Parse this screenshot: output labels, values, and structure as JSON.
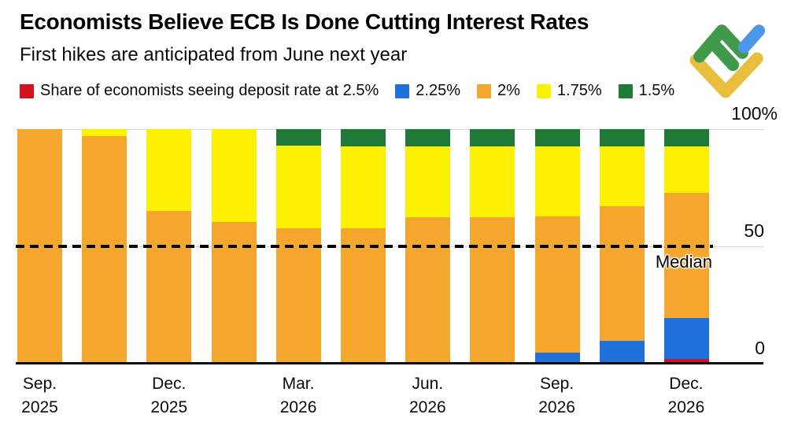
{
  "header": {
    "title": "Economists Believe ECB Is Done Cutting Interest Rates",
    "subtitle": "First hikes are anticipated from June next year"
  },
  "legend": {
    "items": [
      {
        "label": "Share of economists seeing deposit rate at 2.5%",
        "rate": "2.5%",
        "color": "#d6101f"
      },
      {
        "label": "2.25%",
        "rate": "2.25%",
        "color": "#2171dd"
      },
      {
        "label": "2%",
        "rate": "2%",
        "color": "#f5a62c"
      },
      {
        "label": "1.75%",
        "rate": "1.75%",
        "color": "#fbf100"
      },
      {
        "label": "1.5%",
        "rate": "1.5%",
        "color": "#1e7a36"
      }
    ]
  },
  "logo": {
    "name": "litefinance-logo",
    "colors": {
      "green": "#3f9b4b",
      "blue": "#4b97e8",
      "yellow": "#e9be3c"
    }
  },
  "chart_data": {
    "type": "bar",
    "stacked": true,
    "title": "Economists Believe ECB Is Done Cutting Interest Rates",
    "subtitle": "First hikes are anticipated from June next year",
    "unit": "% share of economists",
    "ylim": [
      0,
      100
    ],
    "grid": "horizontal, at 50 and 100",
    "legend_position": "top",
    "y_ticks": [
      {
        "label": "100%",
        "value": 100
      },
      {
        "label": "50",
        "value": 50
      },
      {
        "label": "0",
        "value": 0
      }
    ],
    "median_annotation": {
      "label": "Median",
      "value": 50
    },
    "stack_order_top_to_bottom": [
      "1.5%",
      "1.75%",
      "2%",
      "2.25%",
      "2.5%"
    ],
    "x_tick_labels": [
      {
        "line1": "Sep.",
        "line2": "2025",
        "under_bar_index": 0
      },
      {
        "line1": "Dec.",
        "line2": "2025",
        "under_bar_index": 2
      },
      {
        "line1": "Mar.",
        "line2": "2026",
        "under_bar_index": 4
      },
      {
        "line1": "Jun.",
        "line2": "2026",
        "under_bar_index": 6
      },
      {
        "line1": "Sep.",
        "line2": "2026",
        "under_bar_index": 8
      },
      {
        "line1": "Dec.",
        "line2": "2026",
        "under_bar_index": 10
      }
    ],
    "bars": [
      {
        "values": {
          "2.5%": 0,
          "2.25%": 0,
          "2%": 100,
          "1.75%": 0,
          "1.5%": 0
        }
      },
      {
        "values": {
          "2.5%": 0,
          "2.25%": 0,
          "2%": 97,
          "1.75%": 3,
          "1.5%": 0
        }
      },
      {
        "values": {
          "2.5%": 0,
          "2.25%": 0,
          "2%": 65,
          "1.75%": 35,
          "1.5%": 0
        }
      },
      {
        "values": {
          "2.5%": 0,
          "2.25%": 0,
          "2%": 60,
          "1.75%": 40,
          "1.5%": 0
        }
      },
      {
        "values": {
          "2.5%": 0,
          "2.25%": 0,
          "2%": 57.5,
          "1.75%": 35.5,
          "1.5%": 7
        }
      },
      {
        "values": {
          "2.5%": 0,
          "2.25%": 0,
          "2%": 57.5,
          "1.75%": 35,
          "1.5%": 7.5
        }
      },
      {
        "values": {
          "2.5%": 0,
          "2.25%": 0,
          "2%": 62,
          "1.75%": 30.5,
          "1.5%": 7.5
        }
      },
      {
        "values": {
          "2.5%": 0,
          "2.25%": 0,
          "2%": 62,
          "1.75%": 30.5,
          "1.5%": 7.5
        }
      },
      {
        "values": {
          "2.5%": 0,
          "2.25%": 4,
          "2%": 58.5,
          "1.75%": 30,
          "1.5%": 7.5
        }
      },
      {
        "values": {
          "2.5%": 0,
          "2.25%": 9,
          "2%": 58,
          "1.75%": 25.5,
          "1.5%": 7.5
        }
      },
      {
        "values": {
          "2.5%": 1.5,
          "2.25%": 17.5,
          "2%": 53.5,
          "1.75%": 20,
          "1.5%": 7.5
        }
      }
    ]
  }
}
